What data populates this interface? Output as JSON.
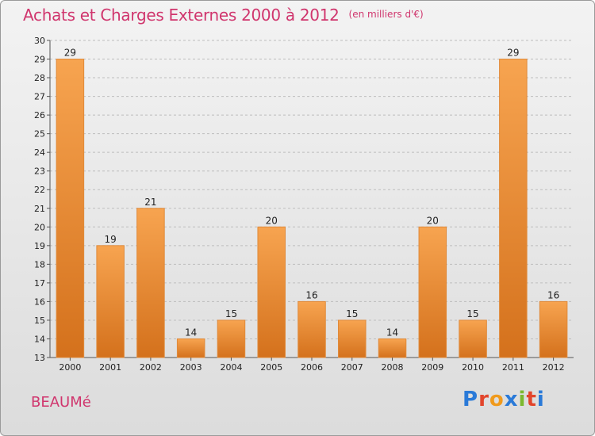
{
  "header": {
    "title": "Achats et Charges Externes 2000 à 2012",
    "subtitle": "(en milliers d'€)"
  },
  "footer": {
    "commune": "BEAUMé",
    "logo_letters": [
      "P",
      "r",
      "o",
      "x",
      "i",
      "t",
      "i"
    ],
    "logo_colors": [
      "#2a7ad8",
      "#e2452c",
      "#f09a1c",
      "#2a7ad8",
      "#7cb82f",
      "#e2452c",
      "#2a7ad8"
    ]
  },
  "colors": {
    "bar_light": "#f7a450",
    "bar_dark": "#d4711c",
    "label": "#222222",
    "grid": "#bdbdbd",
    "accent": "#d0356d"
  },
  "chart_data": {
    "type": "bar",
    "categories": [
      "2000",
      "2001",
      "2002",
      "2003",
      "2004",
      "2005",
      "2006",
      "2007",
      "2008",
      "2009",
      "2010",
      "2011",
      "2012"
    ],
    "values": [
      29,
      19,
      21,
      14,
      15,
      20,
      16,
      15,
      14,
      20,
      15,
      29,
      16
    ],
    "title": "Achats et Charges Externes 2000 à 2012",
    "subtitle": "(en milliers d'€)",
    "ylim": [
      13,
      30
    ],
    "yticks": [
      13,
      14,
      15,
      16,
      17,
      18,
      19,
      20,
      21,
      22,
      23,
      24,
      25,
      26,
      27,
      28,
      29,
      30
    ],
    "grid": true,
    "data_labels": true
  }
}
